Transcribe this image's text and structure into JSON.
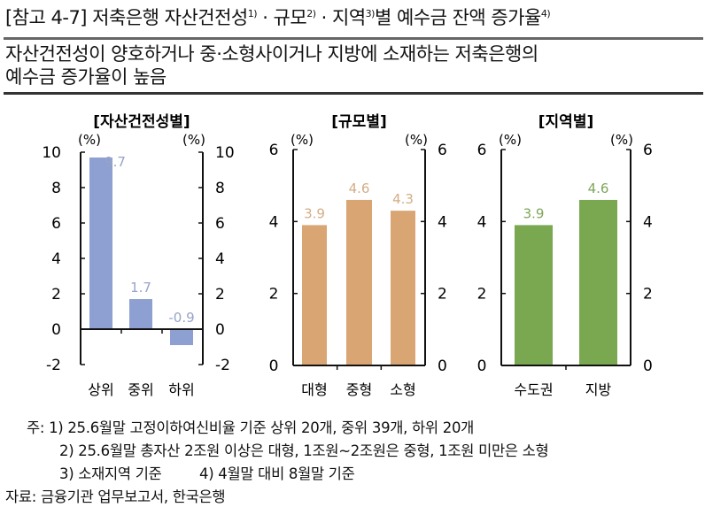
{
  "header": {
    "title_parts": [
      "[참고 4-7] 저축은행 자산건전성",
      "1)",
      " · 규모",
      "2)",
      " · 지역",
      "3)",
      "별 예수금 잔액 증가율",
      "4)"
    ],
    "subtitle_lines": [
      "자산건전성이 양호하거나 중·소형사이거나 지방에 소재하는 저축은행의",
      "예수금 증가율이 높음"
    ]
  },
  "chart_data": [
    {
      "type": "bar",
      "title": "[자산건전성별]",
      "ylabel": "(%)",
      "ylabel_right": "(%)",
      "categories": [
        "상위",
        "중위",
        "하위"
      ],
      "values": [
        9.7,
        1.7,
        -0.9
      ],
      "value_labels": [
        "9.7",
        "1.7",
        "-0.9"
      ],
      "ylim": [
        -2,
        10
      ],
      "yticks": [
        "-2",
        "0",
        "2",
        "4",
        "6",
        "8",
        "10"
      ],
      "ytick_values": [
        -2,
        0,
        2,
        4,
        6,
        8,
        10
      ],
      "color": "#8e9fd1",
      "label_color": "#97a4c8",
      "grid": false
    },
    {
      "type": "bar",
      "title": "[규모별]",
      "ylabel": "(%)",
      "ylabel_right": "(%)",
      "categories": [
        "대형",
        "중형",
        "소형"
      ],
      "values": [
        3.9,
        4.6,
        4.3
      ],
      "value_labels": [
        "3.9",
        "4.6",
        "4.3"
      ],
      "ylim": [
        0,
        6
      ],
      "yticks": [
        "0",
        "2",
        "4",
        "6"
      ],
      "ytick_values": [
        0,
        2,
        4,
        6
      ],
      "color": "#d9a573",
      "label_color": "#d3ad86",
      "grid": false
    },
    {
      "type": "bar",
      "title": "[지역별]",
      "ylabel": "(%)",
      "ylabel_right": "(%)",
      "categories": [
        "수도권",
        "지방"
      ],
      "values": [
        3.9,
        4.6
      ],
      "value_labels": [
        "3.9",
        "4.6"
      ],
      "ylim": [
        0,
        6
      ],
      "yticks": [
        "0",
        "2",
        "4",
        "6"
      ],
      "ytick_values": [
        0,
        2,
        4,
        6
      ],
      "color": "#79a851",
      "label_color": "#7fa55a",
      "grid": false
    }
  ],
  "notes": {
    "line1": "주:  1) 25.6월말 고정이하여신비율 기준 상위 20개, 중위 39개, 하위 20개",
    "line2": "2) 25.6월말 총자산 2조원 이상은 대형, 1조원~2조원은 중형, 1조원 미만은 소형",
    "line3a": "3) 소재지역 기준",
    "line3b": "4) 4월말 대비 8월말 기준",
    "source": "자료: 금융기관 업무보고서, 한국은행"
  }
}
